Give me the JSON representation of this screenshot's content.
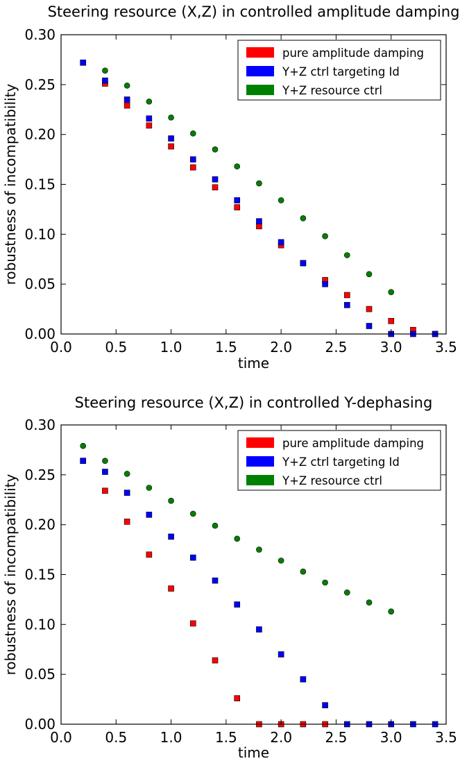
{
  "chart_data": [
    {
      "type": "scatter",
      "title": "Steering resource (X,Z) in controlled amplitude damping",
      "xlabel": "time",
      "ylabel": "robustness of incompatibility",
      "xlim": [
        0.0,
        3.5
      ],
      "ylim": [
        0.0,
        0.3
      ],
      "x_ticks": [
        "0.0",
        "0.5",
        "1.0",
        "1.5",
        "2.0",
        "2.5",
        "3.0",
        "3.5"
      ],
      "y_ticks": [
        "0.00",
        "0.05",
        "0.10",
        "0.15",
        "0.20",
        "0.25",
        "0.30"
      ],
      "grid": false,
      "legend_position": "top-right",
      "series": [
        {
          "name": "pure amplitude damping",
          "color": "#ff0000",
          "marker": "square",
          "x": [
            0.2,
            0.4,
            0.6,
            0.8,
            1.0,
            1.2,
            1.4,
            1.6,
            1.8,
            2.0,
            2.2,
            2.4,
            2.6,
            2.8,
            3.0,
            3.2,
            3.4
          ],
          "y": [
            0.272,
            0.251,
            0.229,
            0.209,
            0.188,
            0.167,
            0.147,
            0.127,
            0.108,
            0.089,
            0.071,
            0.054,
            0.039,
            0.025,
            0.013,
            0.004,
            0.0
          ]
        },
        {
          "name": "Y+Z ctrl targeting Id",
          "color": "#0000ff",
          "marker": "square",
          "x": [
            0.2,
            0.4,
            0.6,
            0.8,
            1.0,
            1.2,
            1.4,
            1.6,
            1.8,
            2.0,
            2.2,
            2.4,
            2.6,
            2.8,
            3.0,
            3.2,
            3.4
          ],
          "y": [
            0.272,
            0.254,
            0.235,
            0.216,
            0.196,
            0.175,
            0.155,
            0.134,
            0.113,
            0.092,
            0.071,
            0.05,
            0.029,
            0.008,
            0.0,
            0.0,
            0.0
          ]
        },
        {
          "name": "Y+Z resource ctrl",
          "color": "#008000",
          "marker": "circle",
          "x": [
            0.4,
            0.6,
            0.8,
            1.0,
            1.2,
            1.4,
            1.6,
            1.8,
            2.0,
            2.2,
            2.4,
            2.6,
            2.8,
            3.0
          ],
          "y": [
            0.264,
            0.249,
            0.233,
            0.217,
            0.201,
            0.185,
            0.168,
            0.151,
            0.134,
            0.116,
            0.098,
            0.079,
            0.06,
            0.042
          ]
        }
      ]
    },
    {
      "type": "scatter",
      "title": "Steering resource (X,Z) in controlled Y-dephasing",
      "xlabel": "time",
      "ylabel": "robustness of incompatibility",
      "xlim": [
        0.0,
        3.5
      ],
      "ylim": [
        0.0,
        0.3
      ],
      "x_ticks": [
        "0.0",
        "0.5",
        "1.0",
        "1.5",
        "2.0",
        "2.5",
        "3.0",
        "3.5"
      ],
      "y_ticks": [
        "0.00",
        "0.05",
        "0.10",
        "0.15",
        "0.20",
        "0.25",
        "0.30"
      ],
      "grid": false,
      "legend_position": "top-right",
      "series": [
        {
          "name": "pure amplitude damping",
          "color": "#ff0000",
          "marker": "square",
          "x": [
            0.2,
            0.4,
            0.6,
            0.8,
            1.0,
            1.2,
            1.4,
            1.6,
            1.8,
            2.0,
            2.2,
            2.4
          ],
          "y": [
            0.264,
            0.234,
            0.203,
            0.17,
            0.136,
            0.101,
            0.064,
            0.026,
            0.0,
            0.0,
            0.0,
            0.0
          ]
        },
        {
          "name": "Y+Z ctrl targeting Id",
          "color": "#0000ff",
          "marker": "square",
          "x": [
            0.2,
            0.4,
            0.6,
            0.8,
            1.0,
            1.2,
            1.4,
            1.6,
            1.8,
            2.0,
            2.2,
            2.4,
            2.6,
            2.8,
            3.0,
            3.2,
            3.4
          ],
          "y": [
            0.264,
            0.253,
            0.232,
            0.21,
            0.188,
            0.167,
            0.144,
            0.12,
            0.095,
            0.07,
            0.045,
            0.019,
            0.0,
            0.0,
            0.0,
            0.0,
            0.0
          ]
        },
        {
          "name": "Y+Z resource ctrl",
          "color": "#008000",
          "marker": "circle",
          "x": [
            0.2,
            0.4,
            0.6,
            0.8,
            1.0,
            1.2,
            1.4,
            1.6,
            1.8,
            2.0,
            2.2,
            2.4,
            2.6,
            2.8,
            3.0
          ],
          "y": [
            0.279,
            0.264,
            0.251,
            0.237,
            0.224,
            0.211,
            0.199,
            0.186,
            0.175,
            0.164,
            0.153,
            0.142,
            0.132,
            0.122,
            0.113
          ]
        }
      ]
    }
  ]
}
